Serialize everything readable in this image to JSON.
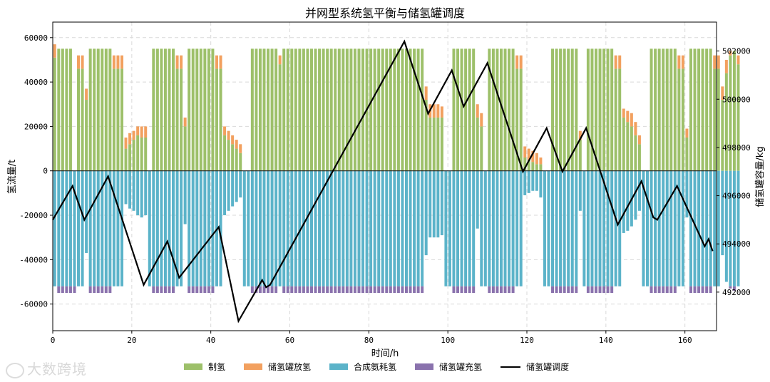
{
  "chart_data": {
    "type": "bar",
    "title": "并网型系统氢平衡与储氢罐调度",
    "xlabel": "时间/h",
    "ylabel": "氢流量/t",
    "y2label": "储氢罐容量/kg",
    "xlim": [
      0,
      168
    ],
    "ylim": [
      -72000,
      67000
    ],
    "y2lim": [
      490400,
      503200
    ],
    "xticks": [
      0,
      20,
      40,
      60,
      80,
      100,
      120,
      140,
      160
    ],
    "yticks": [
      -60000,
      -40000,
      -20000,
      0,
      20000,
      40000,
      60000
    ],
    "y2ticks": [
      492000,
      494000,
      496000,
      498000,
      500000,
      502000
    ],
    "grid": true,
    "legend_position": "bottom-center",
    "colors": {
      "production": "#9dc06a",
      "discharge": "#f2a05f",
      "ammonia": "#5bb3c9",
      "charge": "#8a72ad",
      "storage_line": "#000000",
      "zero_line": "#222222"
    },
    "legend": [
      "制氢",
      "储氢罐放氢",
      "合成氨耗氢",
      "储氢罐充氢",
      "储氢罐调度"
    ],
    "series": [
      {
        "name": "制氢",
        "values": [
          51000,
          55000,
          55000,
          55000,
          55000,
          0,
          46000,
          46000,
          32000,
          55000,
          55000,
          55000,
          55000,
          55000,
          55000,
          46000,
          46000,
          46000,
          10000,
          12000,
          14000,
          16000,
          15000,
          15000,
          0,
          55000,
          55000,
          55000,
          55000,
          55000,
          55000,
          46000,
          46000,
          20000,
          55000,
          55000,
          55000,
          55000,
          55000,
          55000,
          55000,
          46000,
          46000,
          16000,
          14000,
          12000,
          10000,
          8000,
          0,
          0,
          55000,
          55000,
          55000,
          55000,
          55000,
          55000,
          55000,
          48000,
          55000,
          55000,
          55000,
          55000,
          55000,
          55000,
          55000,
          55000,
          55000,
          55000,
          55000,
          55000,
          55000,
          55000,
          55000,
          55000,
          55000,
          55000,
          55000,
          55000,
          55000,
          55000,
          55000,
          55000,
          55000,
          55000,
          55000,
          55000,
          55000,
          55000,
          55000,
          55000,
          55000,
          55000,
          55000,
          55000,
          32000,
          24000,
          24000,
          24000,
          24000,
          0,
          0,
          55000,
          55000,
          55000,
          55000,
          55000,
          55000,
          24000,
          20000,
          0,
          55000,
          55000,
          55000,
          55000,
          55000,
          55000,
          55000,
          46000,
          46000,
          6000,
          5000,
          4000,
          3000,
          3000,
          0,
          0,
          55000,
          55000,
          55000,
          55000,
          55000,
          55000,
          55000,
          14000,
          0,
          55000,
          55000,
          55000,
          55000,
          55000,
          55000,
          55000,
          46000,
          46000,
          24000,
          22000,
          20000,
          16000,
          12000,
          0,
          0,
          55000,
          55000,
          55000,
          55000,
          55000,
          55000,
          55000,
          46000,
          46000,
          15000,
          55000,
          55000,
          55000,
          55000,
          55000,
          55000,
          46000,
          46000,
          32000,
          44000,
          52000,
          54000,
          48000
        ]
      },
      {
        "name": "储氢罐放氢",
        "values": [
          6000,
          0,
          0,
          0,
          0,
          0,
          6000,
          6000,
          5000,
          0,
          0,
          0,
          0,
          0,
          0,
          6000,
          6000,
          6000,
          5000,
          5000,
          4000,
          4000,
          5000,
          5000,
          0,
          0,
          0,
          0,
          0,
          0,
          0,
          6000,
          6000,
          4000,
          0,
          0,
          0,
          0,
          0,
          0,
          0,
          6000,
          6000,
          4000,
          4000,
          4000,
          4000,
          4000,
          0,
          0,
          0,
          0,
          0,
          0,
          0,
          0,
          0,
          4000,
          0,
          0,
          0,
          0,
          0,
          0,
          0,
          0,
          0,
          0,
          0,
          0,
          0,
          0,
          0,
          0,
          0,
          0,
          0,
          0,
          0,
          0,
          0,
          0,
          0,
          0,
          0,
          0,
          0,
          0,
          0,
          0,
          0,
          0,
          0,
          0,
          6000,
          6000,
          6000,
          6000,
          5000,
          0,
          0,
          0,
          0,
          0,
          0,
          0,
          0,
          6000,
          6000,
          0,
          0,
          0,
          0,
          0,
          0,
          0,
          0,
          6000,
          6000,
          5000,
          5000,
          5000,
          5000,
          3000,
          0,
          0,
          0,
          0,
          0,
          0,
          0,
          0,
          0,
          4000,
          0,
          0,
          0,
          0,
          0,
          0,
          0,
          0,
          6000,
          6000,
          4000,
          5000,
          6000,
          6000,
          4000,
          0,
          0,
          0,
          0,
          0,
          0,
          0,
          0,
          0,
          6000,
          6000,
          4000,
          0,
          0,
          0,
          0,
          0,
          0,
          6000,
          6000,
          6000,
          6000,
          2000,
          0,
          4000
        ]
      },
      {
        "name": "合成氨耗氢",
        "values": [
          -52000,
          -52000,
          -52000,
          -52000,
          -52000,
          -52000,
          -52000,
          -52000,
          -37000,
          -52000,
          -52000,
          -52000,
          -52000,
          -52000,
          -52000,
          -52000,
          -52000,
          -52000,
          -15000,
          -17000,
          -18000,
          -20000,
          -21000,
          -20000,
          -52000,
          -52000,
          -52000,
          -52000,
          -52000,
          -52000,
          -52000,
          -52000,
          -52000,
          -24000,
          -52000,
          -52000,
          -52000,
          -52000,
          -52000,
          -52000,
          -52000,
          -52000,
          -52000,
          -20000,
          -18000,
          -16000,
          -14000,
          -12000,
          -52000,
          -52000,
          -52000,
          -52000,
          -52000,
          -52000,
          -52000,
          -52000,
          -52000,
          -52000,
          -52000,
          -52000,
          -52000,
          -52000,
          -52000,
          -52000,
          -52000,
          -52000,
          -52000,
          -52000,
          -52000,
          -52000,
          -52000,
          -52000,
          -52000,
          -52000,
          -52000,
          -52000,
          -52000,
          -52000,
          -52000,
          -52000,
          -52000,
          -52000,
          -52000,
          -52000,
          -52000,
          -52000,
          -52000,
          -52000,
          -52000,
          -52000,
          -52000,
          -52000,
          -52000,
          -52000,
          -38000,
          -30000,
          -30000,
          -30000,
          -29000,
          -52000,
          -52000,
          -52000,
          -52000,
          -52000,
          -52000,
          -52000,
          -52000,
          -26000,
          -52000,
          -52000,
          -52000,
          -52000,
          -52000,
          -52000,
          -52000,
          -52000,
          -52000,
          -52000,
          -52000,
          -11000,
          -10000,
          -9000,
          -9000,
          -12000,
          -52000,
          -52000,
          -52000,
          -52000,
          -52000,
          -52000,
          -52000,
          -52000,
          -52000,
          -18000,
          -52000,
          -52000,
          -52000,
          -52000,
          -52000,
          -52000,
          -52000,
          -52000,
          -52000,
          -52000,
          -28000,
          -27000,
          -25000,
          -22000,
          -18000,
          -52000,
          -52000,
          -52000,
          -52000,
          -52000,
          -52000,
          -52000,
          -52000,
          -52000,
          -52000,
          -52000,
          -21000,
          -52000,
          -52000,
          -52000,
          -52000,
          -52000,
          -52000,
          -52000,
          -52000,
          -38000,
          -50000,
          -52000,
          -52000,
          -52000
        ]
      },
      {
        "name": "储氢罐充氢",
        "values": [
          0,
          -3000,
          -3000,
          -3000,
          -3000,
          -3000,
          0,
          0,
          0,
          -3000,
          -3000,
          -3000,
          -3000,
          -3000,
          -3000,
          0,
          0,
          0,
          0,
          0,
          0,
          0,
          0,
          0,
          0,
          -3000,
          -3000,
          -3000,
          -3000,
          -3000,
          -3000,
          0,
          0,
          0,
          -3000,
          -3000,
          -3000,
          -3000,
          -3000,
          -3000,
          -3000,
          0,
          0,
          0,
          0,
          0,
          0,
          0,
          0,
          0,
          -3000,
          -3000,
          -3000,
          -3000,
          -3000,
          -3000,
          -3000,
          0,
          -3000,
          -3000,
          -3000,
          -3000,
          -3000,
          -3000,
          -3000,
          -3000,
          -3000,
          -3000,
          -3000,
          -3000,
          -3000,
          -3000,
          -3000,
          -3000,
          -3000,
          -3000,
          -3000,
          -3000,
          -3000,
          -3000,
          -3000,
          -3000,
          -3000,
          -3000,
          -3000,
          -3000,
          -3000,
          -3000,
          -3000,
          -3000,
          -3000,
          -3000,
          -3000,
          -3000,
          0,
          0,
          0,
          0,
          0,
          0,
          0,
          -3000,
          -3000,
          -3000,
          -3000,
          -3000,
          -3000,
          0,
          0,
          0,
          -3000,
          -3000,
          -3000,
          -3000,
          -3000,
          -3000,
          -3000,
          0,
          0,
          0,
          0,
          0,
          0,
          0,
          0,
          0,
          -3000,
          -3000,
          -3000,
          -3000,
          -3000,
          -3000,
          -3000,
          0,
          0,
          -3000,
          -3000,
          -3000,
          -3000,
          -3000,
          -3000,
          -3000,
          0,
          0,
          0,
          0,
          0,
          0,
          0,
          0,
          0,
          -3000,
          -3000,
          -3000,
          -3000,
          -3000,
          -3000,
          -3000,
          0,
          0,
          0,
          -3000,
          -3000,
          -3000,
          -3000,
          -3000,
          -3000,
          0,
          0,
          0,
          0,
          -1000,
          -2000,
          0
        ]
      },
      {
        "name": "储氢罐调度",
        "type": "line",
        "x": [
          0,
          5,
          8,
          14,
          23,
          29,
          32,
          42,
          47,
          53,
          54,
          55,
          89,
          95,
          101,
          104,
          110,
          119,
          125,
          129,
          135,
          143,
          149,
          152,
          153,
          158,
          165,
          166,
          167
        ],
        "values": [
          495000,
          496400,
          495000,
          496800,
          492300,
          494100,
          492600,
          494700,
          490800,
          492500,
          492200,
          492300,
          502400,
          499400,
          501200,
          499700,
          501500,
          497000,
          498800,
          497000,
          498800,
          494800,
          496600,
          495100,
          495000,
          496400,
          493900,
          494200,
          493700
        ]
      }
    ]
  }
}
